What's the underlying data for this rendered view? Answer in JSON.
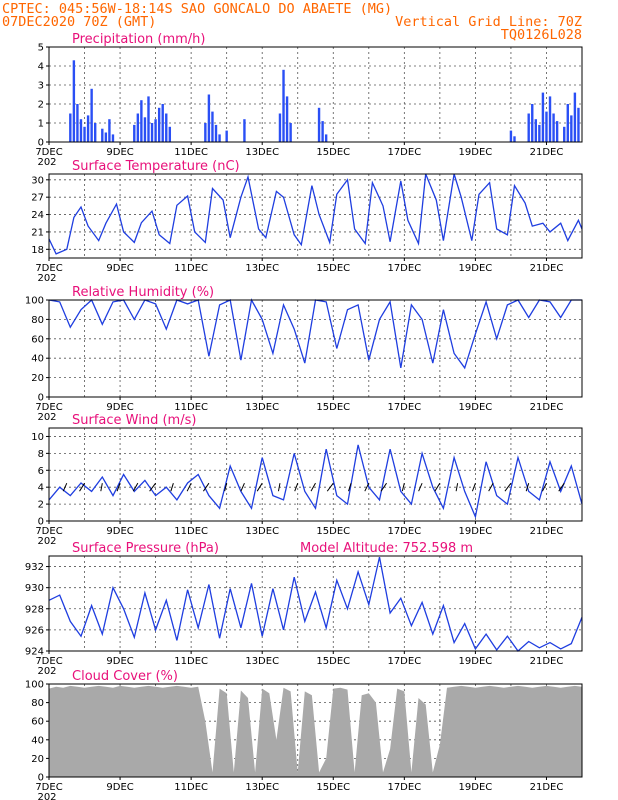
{
  "header": {
    "line1": "CPTEC:  045:56W-18:14S  SAO GONCALO DO ABAETE (MG)",
    "line2_left": "07DEC2020 70Z (GMT)",
    "line2_right": "Vertical Grid Line: 70Z",
    "line3_right": "TQ0126L028"
  },
  "x_axis": {
    "start": "2020-12-07T00",
    "end": "2020-12-22T00",
    "tick_labels": [
      "7DEC",
      "9DEC",
      "11DEC",
      "13DEC",
      "15DEC",
      "17DEC",
      "19DEC",
      "21DEC"
    ],
    "year_fragment": "202",
    "grid": "dotted vertical daily lines"
  },
  "colors": {
    "header": "#ff6600",
    "panel_title": "#e8107a",
    "line": "#1f3ee0",
    "bar": "#2a4ff5",
    "cloud": "#a9a9a9",
    "wind_arrow": "#000000"
  },
  "chart_data": [
    {
      "type": "bar",
      "title": "Precipitation (mm/h)",
      "ylim": [
        0,
        5
      ],
      "yticks": [
        0,
        1,
        2,
        3,
        4,
        5
      ],
      "series_desc": "hourly precipitation, burst pattern",
      "x": [
        7.6,
        7.7,
        7.8,
        7.9,
        8.0,
        8.1,
        8.2,
        8.3,
        8.5,
        8.6,
        8.7,
        8.8,
        9.4,
        9.5,
        9.6,
        9.7,
        9.8,
        9.9,
        10.0,
        10.1,
        10.2,
        10.3,
        10.4,
        11.4,
        11.5,
        11.6,
        11.7,
        11.8,
        12.0,
        12.5,
        13.5,
        13.6,
        13.7,
        13.8,
        14.6,
        14.7,
        14.8,
        20.0,
        20.1,
        20.5,
        20.6,
        20.7,
        20.8,
        20.9,
        21.0,
        21.1,
        21.2,
        21.3,
        21.5,
        21.6,
        21.7,
        21.8,
        21.9
      ],
      "values": [
        1.5,
        4.3,
        2.0,
        1.2,
        0.8,
        1.4,
        2.8,
        1.0,
        0.7,
        0.5,
        1.2,
        0.4,
        0.9,
        1.5,
        2.2,
        1.3,
        2.4,
        1.0,
        1.2,
        1.8,
        2.0,
        1.5,
        0.8,
        1.0,
        2.5,
        1.6,
        0.9,
        0.4,
        0.6,
        1.2,
        1.5,
        3.8,
        2.4,
        1.0,
        1.8,
        1.1,
        0.4,
        0.6,
        0.3,
        1.5,
        2.0,
        1.2,
        0.9,
        2.6,
        1.6,
        2.4,
        1.5,
        1.1,
        0.8,
        2.0,
        1.4,
        2.6,
        1.8
      ]
    },
    {
      "type": "line",
      "title": "Surface Temperature (nC)",
      "ylim": [
        16.5,
        31
      ],
      "yticks": [
        18,
        21,
        24,
        27,
        30
      ],
      "x": [
        7.0,
        7.2,
        7.5,
        7.7,
        7.9,
        8.1,
        8.4,
        8.6,
        8.9,
        9.1,
        9.4,
        9.6,
        9.9,
        10.1,
        10.4,
        10.6,
        10.9,
        11.1,
        11.4,
        11.6,
        11.9,
        12.1,
        12.4,
        12.6,
        12.9,
        13.1,
        13.4,
        13.6,
        13.9,
        14.1,
        14.4,
        14.6,
        14.9,
        15.1,
        15.4,
        15.6,
        15.9,
        16.1,
        16.4,
        16.6,
        16.9,
        17.1,
        17.4,
        17.6,
        17.9,
        18.1,
        18.4,
        18.6,
        18.9,
        19.1,
        19.4,
        19.6,
        19.9,
        20.1,
        20.4,
        20.6,
        20.9,
        21.1,
        21.4,
        21.6,
        21.9,
        22.0
      ],
      "values": [
        19.8,
        17.2,
        18.0,
        23.5,
        25.3,
        22.0,
        19.5,
        22.5,
        25.8,
        21.0,
        19.2,
        22.6,
        24.6,
        20.5,
        19.0,
        25.6,
        27.2,
        21.0,
        19.2,
        28.5,
        26.5,
        20.0,
        27.0,
        30.5,
        21.5,
        20.0,
        28.0,
        27.0,
        20.5,
        18.8,
        29.0,
        24.0,
        19.2,
        27.5,
        30.0,
        21.5,
        19.0,
        29.5,
        25.5,
        19.3,
        29.8,
        23.0,
        19.0,
        31.0,
        26.5,
        19.5,
        31.0,
        27.0,
        19.5,
        27.5,
        29.5,
        21.5,
        20.5,
        29.0,
        26.0,
        22.0,
        22.5,
        21.0,
        22.5,
        19.5,
        23.0,
        21.5
      ]
    },
    {
      "type": "line",
      "title": "Relative Humidity (%)",
      "ylim": [
        0,
        100
      ],
      "yticks": [
        0,
        20,
        40,
        60,
        80,
        100
      ],
      "x": [
        7.0,
        7.3,
        7.6,
        7.9,
        8.2,
        8.5,
        8.8,
        9.1,
        9.4,
        9.7,
        10.0,
        10.3,
        10.6,
        10.9,
        11.2,
        11.5,
        11.8,
        12.1,
        12.4,
        12.7,
        13.0,
        13.3,
        13.6,
        13.9,
        14.2,
        14.5,
        14.8,
        15.1,
        15.4,
        15.7,
        16.0,
        16.3,
        16.6,
        16.9,
        17.2,
        17.5,
        17.8,
        18.1,
        18.4,
        18.7,
        19.0,
        19.3,
        19.6,
        19.9,
        20.2,
        20.5,
        20.8,
        21.1,
        21.4,
        21.7,
        22.0
      ],
      "values": [
        100,
        98,
        72,
        90,
        100,
        75,
        98,
        100,
        80,
        100,
        96,
        70,
        100,
        96,
        100,
        42,
        95,
        100,
        38,
        100,
        80,
        45,
        95,
        70,
        35,
        100,
        98,
        50,
        90,
        95,
        38,
        80,
        98,
        30,
        95,
        80,
        35,
        90,
        45,
        30,
        65,
        98,
        60,
        95,
        100,
        82,
        100,
        98,
        82,
        100,
        100
      ]
    },
    {
      "type": "line",
      "title": "Surface Wind (m/s)",
      "ylim": [
        0,
        11
      ],
      "yticks": [
        0,
        2,
        4,
        6,
        8,
        10
      ],
      "arrows": "wind direction vectors",
      "x": [
        7.0,
        7.3,
        7.6,
        7.9,
        8.2,
        8.5,
        8.8,
        9.1,
        9.4,
        9.7,
        10.0,
        10.3,
        10.6,
        10.9,
        11.2,
        11.5,
        11.8,
        12.1,
        12.4,
        12.7,
        13.0,
        13.3,
        13.6,
        13.9,
        14.2,
        14.5,
        14.8,
        15.1,
        15.4,
        15.7,
        16.0,
        16.3,
        16.6,
        16.9,
        17.2,
        17.5,
        17.8,
        18.1,
        18.4,
        18.7,
        19.0,
        19.3,
        19.6,
        19.9,
        20.2,
        20.5,
        20.8,
        21.1,
        21.4,
        21.7,
        22.0
      ],
      "values": [
        2.5,
        4.0,
        3.0,
        4.5,
        3.5,
        5.2,
        3.0,
        5.5,
        3.5,
        4.8,
        3.0,
        4.0,
        2.5,
        4.5,
        5.5,
        3.0,
        1.5,
        6.5,
        3.5,
        1.5,
        7.5,
        3.0,
        2.5,
        8.0,
        3.5,
        1.5,
        8.5,
        3.0,
        2.0,
        9.0,
        4.0,
        2.5,
        8.5,
        3.5,
        2.0,
        8.0,
        4.0,
        1.5,
        7.5,
        3.5,
        0.5,
        7.0,
        3.0,
        2.0,
        7.5,
        3.5,
        2.5,
        7.0,
        3.5,
        6.5,
        2.0
      ]
    },
    {
      "type": "line",
      "title": "Surface Pressure (hPa)",
      "annotation": "Model Altitude: 752.598  m",
      "ylim": [
        924,
        933
      ],
      "yticks": [
        924,
        926,
        928,
        930,
        932
      ],
      "x": [
        7.0,
        7.3,
        7.6,
        7.9,
        8.2,
        8.5,
        8.8,
        9.1,
        9.4,
        9.7,
        10.0,
        10.3,
        10.6,
        10.9,
        11.2,
        11.5,
        11.8,
        12.1,
        12.4,
        12.7,
        13.0,
        13.3,
        13.6,
        13.9,
        14.2,
        14.5,
        14.8,
        15.1,
        15.4,
        15.7,
        16.0,
        16.3,
        16.6,
        16.9,
        17.2,
        17.5,
        17.8,
        18.1,
        18.4,
        18.7,
        19.0,
        19.3,
        19.6,
        19.9,
        20.2,
        20.5,
        20.8,
        21.1,
        21.4,
        21.7,
        22.0
      ],
      "values": [
        928.8,
        929.3,
        926.8,
        925.4,
        928.3,
        925.6,
        930.0,
        928.0,
        925.3,
        929.5,
        926.0,
        928.8,
        925.0,
        929.8,
        926.2,
        930.3,
        925.2,
        929.9,
        926.2,
        930.4,
        925.4,
        929.9,
        926.0,
        931.0,
        926.8,
        929.6,
        926.2,
        930.7,
        928.0,
        931.5,
        928.4,
        932.9,
        927.6,
        929.0,
        926.4,
        928.6,
        925.6,
        928.3,
        924.8,
        926.6,
        924.2,
        925.6,
        924.1,
        925.4,
        924.0,
        924.9,
        924.3,
        924.8,
        924.2,
        924.7,
        927.2
      ]
    },
    {
      "type": "area",
      "title": "Cloud Cover (%)",
      "ylim": [
        0,
        100
      ],
      "yticks": [
        0,
        20,
        40,
        60,
        80,
        100
      ],
      "x": [
        7.0,
        7.2,
        7.4,
        7.6,
        7.8,
        8.0,
        8.2,
        8.4,
        8.6,
        8.8,
        9.0,
        9.2,
        9.4,
        9.6,
        9.8,
        10.0,
        10.2,
        10.4,
        10.6,
        10.8,
        11.0,
        11.2,
        11.4,
        11.6,
        11.8,
        12.0,
        12.2,
        12.4,
        12.6,
        12.8,
        13.0,
        13.2,
        13.4,
        13.6,
        13.8,
        14.0,
        14.2,
        14.4,
        14.6,
        14.8,
        15.0,
        15.2,
        15.4,
        15.6,
        15.8,
        16.0,
        16.2,
        16.4,
        16.6,
        16.8,
        17.0,
        17.2,
        17.4,
        17.6,
        17.8,
        18.0,
        18.2,
        18.4,
        18.6,
        18.8,
        19.0,
        19.2,
        19.4,
        19.6,
        19.8,
        20.0,
        20.2,
        20.4,
        20.6,
        20.8,
        21.0,
        21.2,
        21.4,
        21.6,
        21.8,
        22.0
      ],
      "values": [
        95,
        97,
        96,
        98,
        97,
        96,
        97,
        98,
        97,
        96,
        98,
        97,
        96,
        97,
        98,
        97,
        96,
        97,
        98,
        97,
        96,
        97,
        60,
        5,
        95,
        90,
        5,
        93,
        85,
        5,
        95,
        90,
        40,
        96,
        92,
        5,
        92,
        88,
        5,
        20,
        95,
        96,
        94,
        5,
        88,
        90,
        80,
        5,
        30,
        95,
        92,
        5,
        85,
        78,
        5,
        35,
        96,
        97,
        98,
        97,
        96,
        97,
        98,
        97,
        96,
        97,
        98,
        97,
        96,
        97,
        98,
        97,
        96,
        97,
        98,
        97
      ]
    }
  ]
}
